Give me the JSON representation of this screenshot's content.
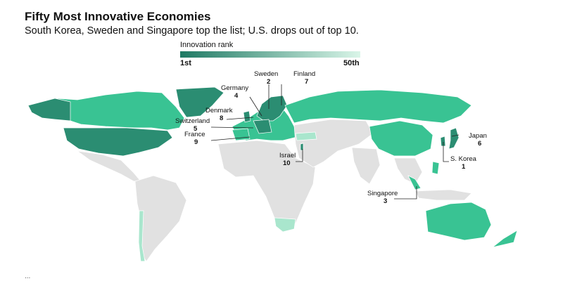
{
  "header": {
    "title": "Fifty Most Innovative Economies",
    "subtitle": "South Korea, Sweden and Singapore top the list; U.S. drops out of top 10."
  },
  "legend": {
    "title": "Innovation rank",
    "min_label": "1st",
    "max_label": "50th",
    "color_top": "#1f7a64",
    "color_bottom": "#d9f5e8"
  },
  "colors": {
    "unranked_land": "#e1e1e1",
    "rank_dark": "#2b8d72",
    "rank_mid": "#39c393",
    "rank_light": "#a9e6cd"
  },
  "countries": [
    {
      "name": "Sweden",
      "rank": "2"
    },
    {
      "name": "Finland",
      "rank": "7"
    },
    {
      "name": "Germany",
      "rank": "4"
    },
    {
      "name": "Denmark",
      "rank": "8"
    },
    {
      "name": "Switzerland",
      "rank": "5"
    },
    {
      "name": "France",
      "rank": "9"
    },
    {
      "name": "Israel",
      "rank": "10"
    },
    {
      "name": "Japan",
      "rank": "6"
    },
    {
      "name": "S. Korea",
      "rank": "1"
    },
    {
      "name": "Singapore",
      "rank": "3"
    }
  ],
  "footer": {
    "source": "..."
  }
}
